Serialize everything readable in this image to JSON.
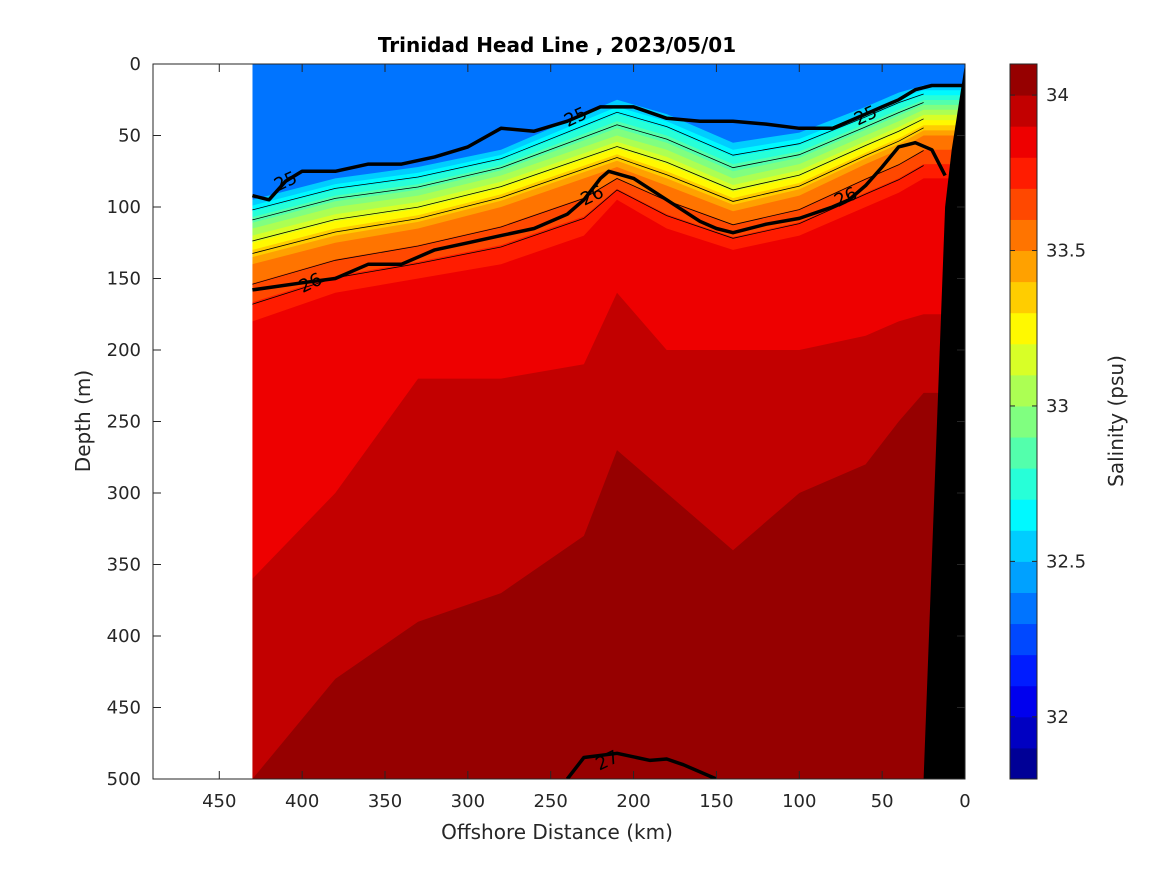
{
  "chart_data": {
    "type": "heatmap",
    "title": "Trinidad Head Line , 2023/05/01",
    "xlabel": "Offshore Distance (km)",
    "ylabel": "Depth (m)",
    "xlim": [
      490,
      0
    ],
    "ylim": [
      0,
      500
    ],
    "x_reversed": true,
    "y_reversed": true,
    "x_ticks": [
      450,
      400,
      350,
      300,
      250,
      200,
      150,
      100,
      50,
      0
    ],
    "y_ticks": [
      0,
      50,
      100,
      150,
      200,
      250,
      300,
      350,
      400,
      450,
      500
    ],
    "data_extent_x": [
      430,
      0
    ],
    "colorbar": {
      "label": "Salinity (psu)",
      "range": [
        31.8,
        34.1
      ],
      "ticks": [
        32,
        32.5,
        33,
        33.5,
        34
      ],
      "levels": [
        31.8,
        31.9,
        32.0,
        32.1,
        32.2,
        32.3,
        32.4,
        32.5,
        32.6,
        32.7,
        32.8,
        32.9,
        33.0,
        33.1,
        33.2,
        33.3,
        33.4,
        33.5,
        33.6,
        33.7,
        33.8,
        33.9,
        34.0,
        34.1
      ],
      "colormap": "jet"
    },
    "salinity_columns": {
      "x": [
        430,
        380,
        330,
        280,
        230,
        210,
        180,
        140,
        100,
        60,
        40,
        25
      ],
      "isohalines": [
        {
          "value": 32.5,
          "depth": [
            95,
            80,
            72,
            60,
            35,
            25,
            35,
            55,
            48,
            30,
            20,
            15
          ]
        },
        {
          "value": 33.0,
          "depth": [
            115,
            100,
            92,
            78,
            58,
            50,
            60,
            80,
            70,
            50,
            40,
            32
          ]
        },
        {
          "value": 33.5,
          "depth": [
            140,
            125,
            115,
            100,
            80,
            72,
            85,
            103,
            92,
            70,
            60,
            50
          ]
        },
        {
          "value": 33.8,
          "depth": [
            180,
            160,
            150,
            140,
            120,
            95,
            115,
            130,
            120,
            100,
            90,
            80
          ]
        },
        {
          "value": 33.9,
          "depth": [
            360,
            300,
            220,
            220,
            210,
            160,
            200,
            200,
            200,
            190,
            180,
            175
          ]
        },
        {
          "value": 34.0,
          "depth": [
            500,
            430,
            390,
            370,
            330,
            270,
            300,
            340,
            300,
            280,
            250,
            230
          ]
        },
        {
          "value": 34.1,
          "depth": [
            510,
            510,
            510,
            490,
            460,
            400,
            460,
            470,
            450,
            440,
            470,
            470
          ]
        }
      ]
    },
    "density_contours": [
      {
        "label": "25",
        "bold": true,
        "x": [
          430,
          420,
          410,
          400,
          380,
          360,
          340,
          320,
          300,
          280,
          260,
          240,
          230,
          220,
          200,
          180,
          160,
          140,
          120,
          100,
          80,
          70,
          60,
          50,
          40,
          30,
          20,
          10,
          0
        ],
        "depth": [
          92,
          95,
          82,
          75,
          75,
          70,
          70,
          65,
          58,
          45,
          47,
          40,
          35,
          30,
          30,
          38,
          40,
          40,
          42,
          45,
          45,
          40,
          35,
          30,
          25,
          18,
          15,
          15,
          15
        ]
      },
      {
        "label": "26",
        "bold": true,
        "x": [
          430,
          400,
          380,
          360,
          340,
          320,
          300,
          280,
          260,
          240,
          230,
          220,
          215,
          200,
          180,
          160,
          150,
          140,
          120,
          100,
          80,
          70,
          60,
          50,
          40,
          30,
          20,
          12
        ],
        "depth": [
          158,
          153,
          150,
          140,
          140,
          130,
          125,
          120,
          115,
          105,
          95,
          80,
          75,
          80,
          95,
          110,
          115,
          118,
          112,
          108,
          100,
          95,
          85,
          72,
          58,
          55,
          60,
          78
        ]
      },
      {
        "label": "27",
        "bold": true,
        "x": [
          240,
          230,
          210,
          190,
          180,
          170,
          150
        ],
        "depth": [
          500,
          485,
          482,
          487,
          486,
          490,
          500
        ]
      }
    ],
    "contour_labels": [
      {
        "text": "25",
        "x": 410,
        "depth": 82
      },
      {
        "text": "25",
        "x": 235,
        "depth": 37
      },
      {
        "text": "25",
        "x": 60,
        "depth": 36
      },
      {
        "text": "26",
        "x": 395,
        "depth": 153
      },
      {
        "text": "26",
        "x": 225,
        "depth": 92
      },
      {
        "text": "26",
        "x": 72,
        "depth": 93
      },
      {
        "text": "27",
        "x": 216,
        "depth": 487
      }
    ],
    "bathymetry": {
      "x": [
        25,
        12,
        8,
        0,
        0
      ],
      "depth": [
        500,
        100,
        60,
        0,
        500
      ],
      "color": "#000000"
    }
  }
}
